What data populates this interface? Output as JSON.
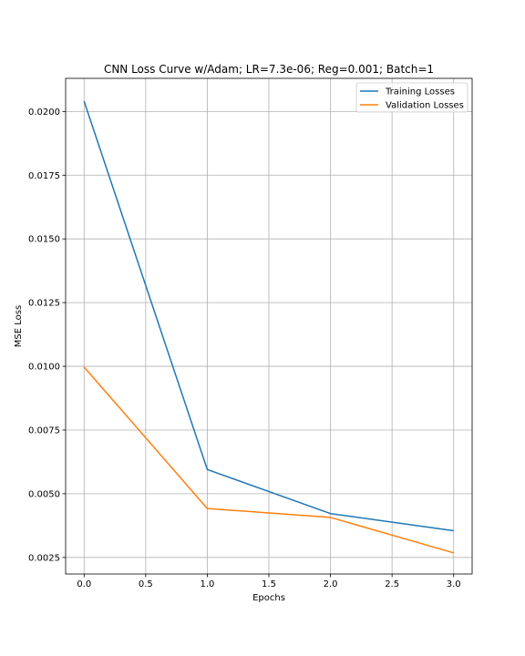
{
  "chart_data": {
    "type": "line",
    "title": "CNN Loss Curve w/Adam; LR=7.3e-06; Reg=0.001; Batch=1",
    "xlabel": "Epochs",
    "ylabel": "MSE Loss",
    "xlim": [
      -0.15,
      3.15
    ],
    "ylim": [
      0.00185,
      0.0213
    ],
    "xticks": [
      0.0,
      0.5,
      1.0,
      1.5,
      2.0,
      2.5,
      3.0
    ],
    "xtick_labels": [
      "0.0",
      "0.5",
      "1.0",
      "1.5",
      "2.0",
      "2.5",
      "3.0"
    ],
    "yticks": [
      0.0025,
      0.005,
      0.0075,
      0.01,
      0.0125,
      0.015,
      0.0175,
      0.02
    ],
    "ytick_labels": [
      "0.0025",
      "0.0050",
      "0.0075",
      "0.0100",
      "0.0125",
      "0.0150",
      "0.0175",
      "0.0200"
    ],
    "grid": true,
    "legend_position": "top-right",
    "x": [
      0,
      1,
      2,
      3
    ],
    "series": [
      {
        "name": "Training Losses",
        "color": "#1f77b4",
        "values": [
          0.0204,
          0.00595,
          0.00422,
          0.00355
        ]
      },
      {
        "name": "Validation Losses",
        "color": "#ff7f0e",
        "values": [
          0.00997,
          0.00442,
          0.00407,
          0.00268
        ]
      }
    ]
  }
}
